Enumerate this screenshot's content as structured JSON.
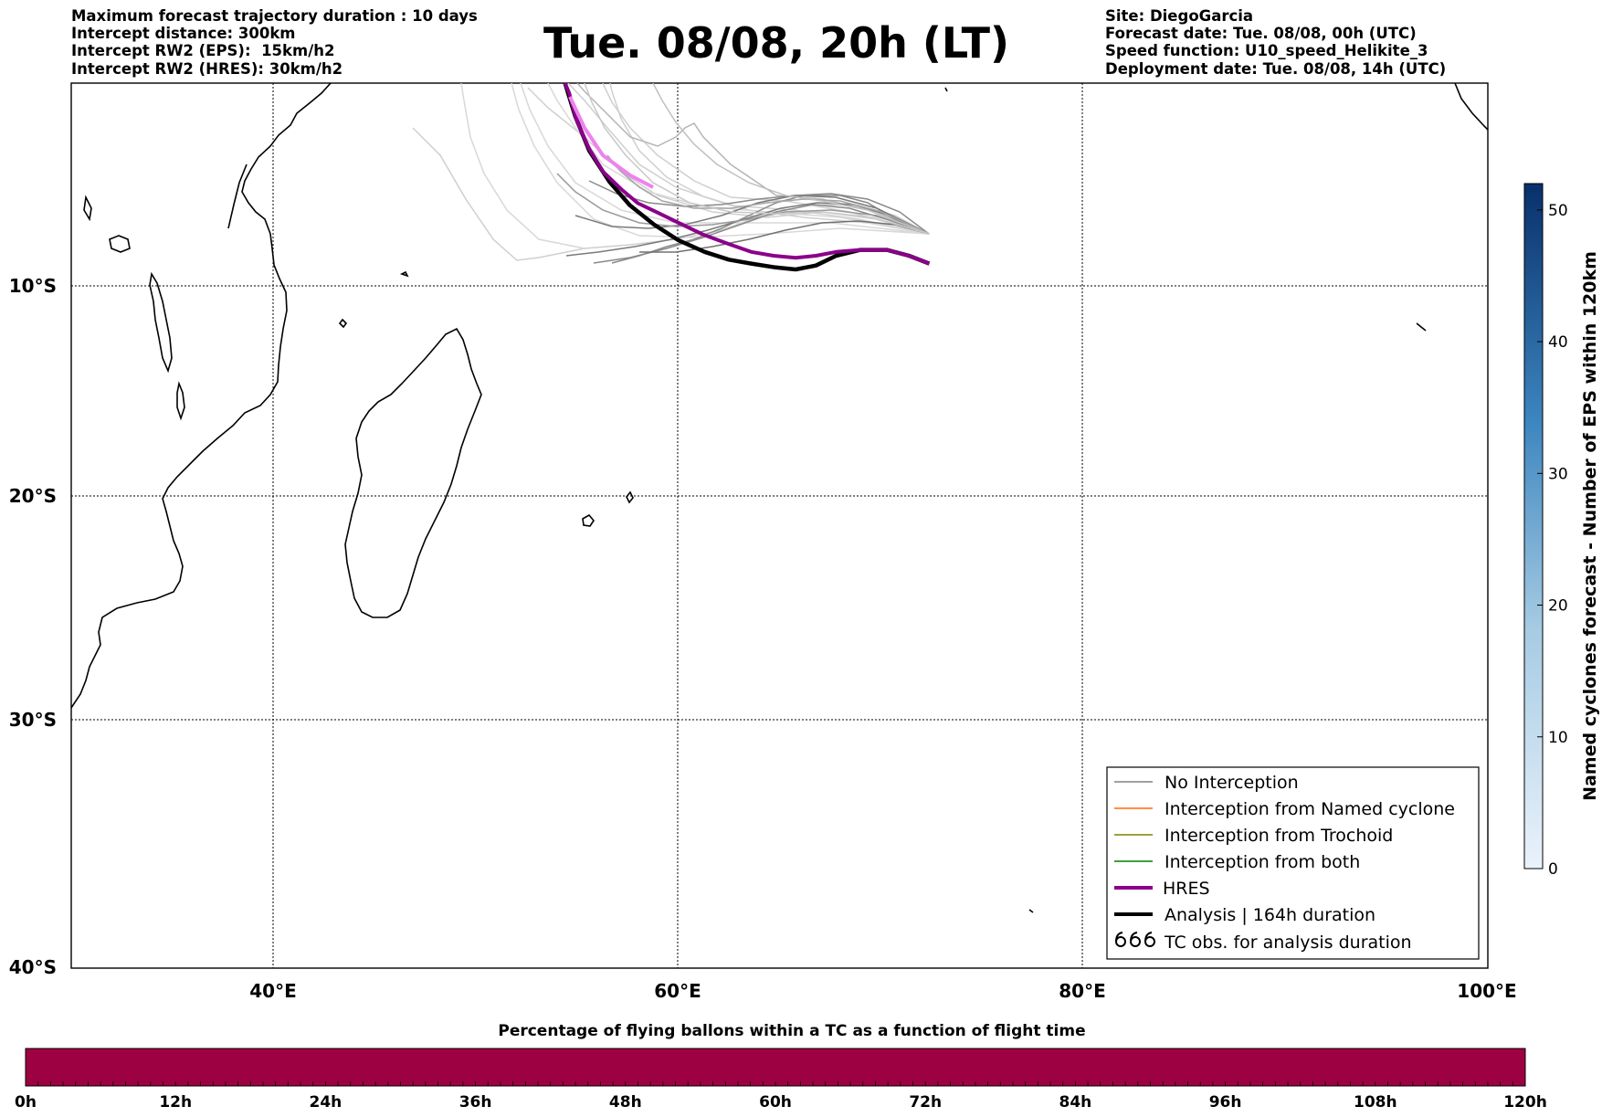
{
  "header": {
    "left_lines": [
      "Maximum forecast trajectory duration : 10 days",
      "Intercept distance: 300km",
      "Intercept RW2 (EPS):  15km/h2",
      "Intercept RW2 (HRES): 30km/h2"
    ],
    "title": "Tue. 08/08, 20h (LT)",
    "right_lines": [
      "Site: DiegoGarcia",
      "Forecast date: Tue. 08/08, 00h (UTC)",
      "Speed function: U10_speed_Helikite_3",
      "Deployment date: Tue. 08/08, 14h (UTC)"
    ]
  },
  "map": {
    "lon_range": [
      30,
      100
    ],
    "lat_range": [
      -40,
      2
    ],
    "lat_labels": [
      "10°S",
      "20°S",
      "30°S",
      "40°S"
    ],
    "lon_labels": [
      "40°E",
      "60°E",
      "80°E",
      "100°E"
    ],
    "gridlines": true
  },
  "legend": {
    "items": [
      {
        "label": "No Interception",
        "color": "#808080"
      },
      {
        "label": "Interception from Named cyclone",
        "color": "#ff6a00"
      },
      {
        "label": "Interception from Trochoid",
        "color": "#808000"
      },
      {
        "label": "Interception from both",
        "color": "#008000"
      },
      {
        "label": "HRES",
        "color": "#8b008b"
      },
      {
        "label": "Analysis | 164h duration",
        "color": "#000000"
      },
      {
        "label": "TC obs. for analysis duration",
        "color": "#000000",
        "icon": "cyclone-symbols-icon"
      }
    ]
  },
  "colorbar_right": {
    "label": "Named cyclones forecast - Number of EPS within 120km",
    "ticks": [
      "0",
      "10",
      "20",
      "30",
      "40",
      "50"
    ],
    "range": [
      0,
      52
    ],
    "color_low": "#e5eef8",
    "color_high": "#08306b"
  },
  "colorbar_bottom": {
    "title": "Percentage of flying ballons within a TC as a function of flight time",
    "ticks": [
      "0h",
      "12h",
      "24h",
      "36h",
      "48h",
      "60h",
      "72h",
      "84h",
      "96h",
      "108h",
      "120h"
    ],
    "fill_color": "#9e0142"
  },
  "chart_data": {
    "type": "line",
    "site": "DiegoGarcia",
    "start": {
      "lon": 72.4,
      "lat": -7.3
    },
    "series": [
      {
        "name": "HRES",
        "color": "#8b008b",
        "points": [
          [
            72.4,
            -7.3
          ],
          [
            71.4,
            -6.9
          ],
          [
            70.3,
            -6.6
          ],
          [
            69.0,
            -6.6
          ],
          [
            67.8,
            -6.7
          ],
          [
            66.8,
            -6.9
          ],
          [
            65.8,
            -7.0
          ],
          [
            64.7,
            -6.9
          ],
          [
            63.6,
            -6.7
          ],
          [
            62.5,
            -6.3
          ],
          [
            61.2,
            -5.8
          ],
          [
            60.0,
            -5.2
          ],
          [
            59.0,
            -4.7
          ],
          [
            58.0,
            -4.2
          ],
          [
            57.2,
            -3.5
          ],
          [
            56.3,
            -2.6
          ],
          [
            55.6,
            -1.4
          ],
          [
            55.0,
            0.0
          ],
          [
            54.6,
            1.5
          ],
          [
            54.4,
            2.0
          ]
        ]
      },
      {
        "name": "Analysis | 164h duration",
        "color": "#000000",
        "points": [
          [
            72.4,
            -7.3
          ],
          [
            71.4,
            -6.9
          ],
          [
            70.3,
            -6.6
          ],
          [
            69.0,
            -6.6
          ],
          [
            67.8,
            -6.9
          ],
          [
            66.8,
            -7.4
          ],
          [
            65.8,
            -7.6
          ],
          [
            64.8,
            -7.5
          ],
          [
            63.6,
            -7.3
          ],
          [
            62.5,
            -7.1
          ],
          [
            61.3,
            -6.7
          ],
          [
            60.0,
            -6.1
          ],
          [
            58.8,
            -5.3
          ],
          [
            57.6,
            -4.3
          ],
          [
            56.6,
            -3.1
          ],
          [
            55.6,
            -1.5
          ],
          [
            54.9,
            0.3
          ],
          [
            54.4,
            2.0
          ]
        ]
      }
    ]
  }
}
